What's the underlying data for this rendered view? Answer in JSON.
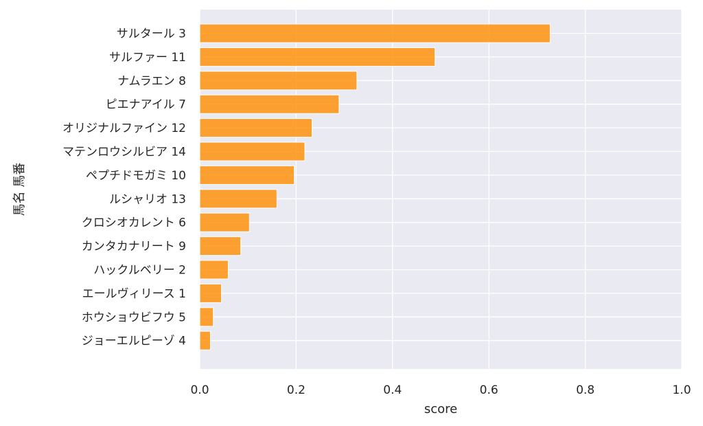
{
  "chart_data": {
    "type": "bar",
    "orientation": "horizontal",
    "categories": [
      "サルタール 3",
      "サルファー 11",
      "ナムラエン 8",
      "ピエナアイル 7",
      "オリジナルファイン 12",
      "マテンロウシルビア 14",
      "ペプチドモガミ 10",
      "ルシャリオ 13",
      "クロシオカレント 6",
      "カンタカナリート 9",
      "ハックルベリー 2",
      "エールヴィリース 1",
      "ホウショウビフウ 5",
      "ジョーエルピーゾ 4"
    ],
    "values": [
      0.727,
      0.488,
      0.326,
      0.289,
      0.233,
      0.218,
      0.196,
      0.16,
      0.103,
      0.085,
      0.059,
      0.045,
      0.028,
      0.022
    ],
    "title": "",
    "xlabel": "score",
    "ylabel": "馬名 馬番",
    "xlim": [
      0,
      1.0
    ],
    "xticks": [
      "0.0",
      "0.2",
      "0.4",
      "0.6",
      "0.8",
      "1.0"
    ],
    "grid": true,
    "bar_color": "#ff8c00",
    "background_color": "#eaeaf2"
  }
}
